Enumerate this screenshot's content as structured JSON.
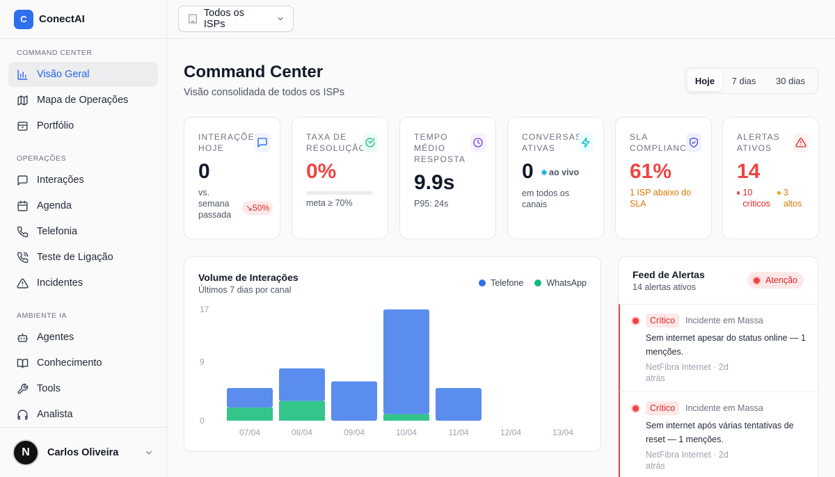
{
  "brand": {
    "logo_letter": "C",
    "name": "ConectAI",
    "color": "#2f6fed"
  },
  "sidebar": {
    "sections": [
      {
        "title": "COMMAND CENTER",
        "items": [
          {
            "label": "Visão Geral",
            "icon": "bar-chart-icon",
            "active": true
          },
          {
            "label": "Mapa de Operações",
            "icon": "map-icon"
          },
          {
            "label": "Portfólio",
            "icon": "briefcase-icon"
          }
        ]
      },
      {
        "title": "OPERAÇÕES",
        "items": [
          {
            "label": "Interações",
            "icon": "message-square-icon"
          },
          {
            "label": "Agenda",
            "icon": "calendar-icon"
          },
          {
            "label": "Telefonia",
            "icon": "phone-icon"
          },
          {
            "label": "Teste de Ligação",
            "icon": "phone-call-icon"
          },
          {
            "label": "Incidentes",
            "icon": "alert-triangle-icon"
          }
        ]
      },
      {
        "title": "AMBIENTE IA",
        "items": [
          {
            "label": "Agentes",
            "icon": "bot-icon"
          },
          {
            "label": "Conhecimento",
            "icon": "book-open-icon"
          },
          {
            "label": "Tools",
            "icon": "wrench-icon"
          },
          {
            "label": "Analista",
            "icon": "headphones-icon"
          }
        ]
      }
    ]
  },
  "user": {
    "initial": "N",
    "name": "Carlos Oliveira"
  },
  "topbar": {
    "isp_selector": "Todos os ISPs"
  },
  "header": {
    "title": "Command Center",
    "subtitle": "Visão consolidada de todos os ISPs"
  },
  "range": {
    "options": [
      "Hoje",
      "7 dias",
      "30 dias"
    ],
    "selected": "Hoje"
  },
  "kpis": {
    "interacoes": {
      "label": "INTERAÇÕES HOJE",
      "value": "0",
      "note": "vs. semana passada",
      "trend": "↘50%",
      "icon": "message-square-icon",
      "accent": "#2563eb"
    },
    "resolucao": {
      "label": "TAXA DE RESOLUÇÃO",
      "value": "0%",
      "note": "meta ≥ 70%",
      "progress": 0,
      "icon": "check-circle-icon",
      "accent": "#10b981"
    },
    "tempo": {
      "label": "TEMPO MÉDIO RESPOSTA",
      "value": "9.9s",
      "note": "P95: 24s",
      "icon": "clock-icon",
      "accent": "#7c3aed"
    },
    "conversas": {
      "label": "CONVERSAS ATIVAS",
      "value": "0",
      "live": "ao vivo",
      "note": "em todos os canais",
      "icon": "zap-icon",
      "accent": "#06b6d4"
    },
    "sla": {
      "label": "SLA COMPLIANCE",
      "value": "61%",
      "note": "1 ISP abaixo do SLA",
      "icon": "shield-check-icon",
      "accent": "#4f46e5"
    },
    "alertas": {
      "label": "ALERTAS ATIVOS",
      "value": "14",
      "criticos": "10 críticos",
      "altos": "3 altos",
      "icon": "alert-triangle-icon",
      "accent": "#dc2626"
    }
  },
  "chart_data": {
    "type": "bar",
    "title": "Volume de Interações",
    "subtitle": "Últimos 7 dias por canal",
    "categories": [
      "07/04",
      "08/04",
      "09/04",
      "10/04",
      "11/04",
      "12/04",
      "13/04"
    ],
    "series": [
      {
        "name": "Telefone",
        "color": "#5b8def",
        "values": [
          3,
          5,
          6,
          16,
          5,
          0,
          0
        ]
      },
      {
        "name": "WhatsApp",
        "color": "#34c58a",
        "values": [
          2,
          3,
          0,
          1,
          0,
          0,
          0
        ]
      }
    ],
    "stacked": true,
    "yticks": [
      0,
      9,
      17
    ],
    "ylim": [
      0,
      17
    ],
    "grid": false,
    "legend": "top-right"
  },
  "feed": {
    "title": "Feed de Alertas",
    "subtitle": "14 alertas ativos",
    "badge": "Atenção",
    "items": [
      {
        "severity": "Crítico",
        "category": "Incidente em Massa",
        "text": "Sem internet apesar do status online — 1 menções.",
        "meta": "NetFibra Internet · 2d atrás"
      },
      {
        "severity": "Crítico",
        "category": "Incidente em Massa",
        "text": "Sem internet após várias tentativas de reset — 1 menções.",
        "meta": "NetFibra Internet · 2d atrás"
      }
    ]
  }
}
